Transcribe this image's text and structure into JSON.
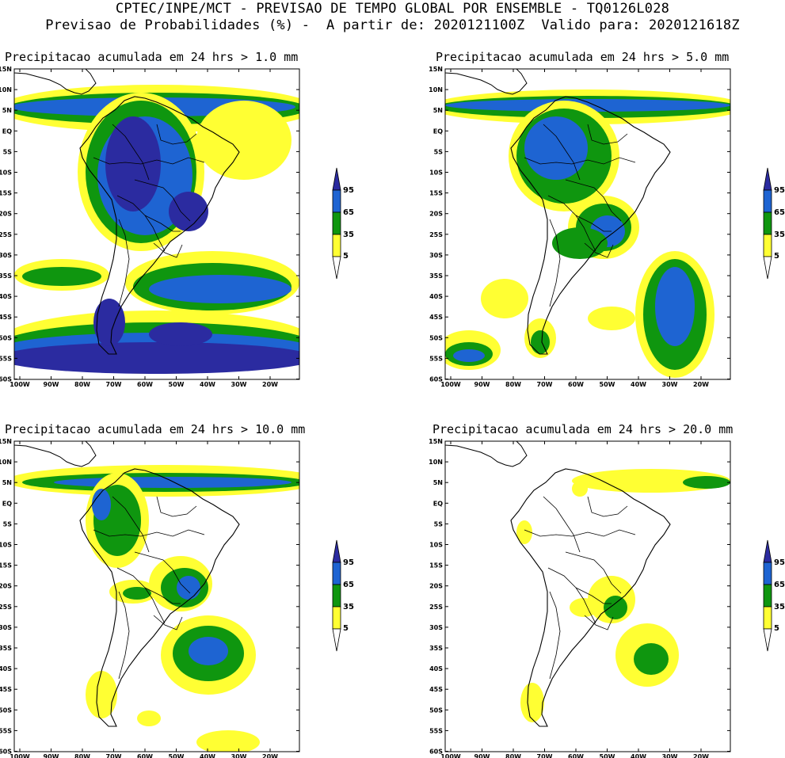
{
  "header": {
    "line1": "CPTEC/INPE/MCT - PREVISAO DE TEMPO GLOBAL POR ENSEMBLE - TQ0126L028",
    "line2": "Previsao de Probabilidades (%) -  A partir de: 2020121100Z  Valido para: 2020121618Z"
  },
  "panels": [
    {
      "id": "p1",
      "title": "Precipitacao acumulada em 24 hrs > 1.0 mm",
      "threshold_mm": 1.0
    },
    {
      "id": "p2",
      "title": "Precipitacao acumulada em 24 hrs > 5.0 mm",
      "threshold_mm": 5.0
    },
    {
      "id": "p3",
      "title": "Precipitacao acumulada em 24 hrs > 10.0 mm",
      "threshold_mm": 10.0
    },
    {
      "id": "p4",
      "title": "Precipitacao acumulada em 24 hrs > 20.0 mm",
      "threshold_mm": 20.0
    }
  ],
  "lat_labels": [
    "15N",
    "10N",
    "5N",
    "EQ",
    "5S",
    "10S",
    "15S",
    "20S",
    "25S",
    "30S",
    "35S",
    "40S",
    "45S",
    "50S",
    "55S",
    "60S"
  ],
  "lon_labels": [
    "100W",
    "90W",
    "80W",
    "70W",
    "60W",
    "50W",
    "40W",
    "30W",
    "20W"
  ],
  "legend": {
    "labels": [
      "95",
      "65",
      "35",
      "5"
    ],
    "colors": {
      "c5": "#ffff33",
      "c35": "#0f960f",
      "c65": "#1e64d2",
      "c95": "#2b2ba0",
      "land": "#ffffff",
      "coast": "#000000"
    }
  }
}
